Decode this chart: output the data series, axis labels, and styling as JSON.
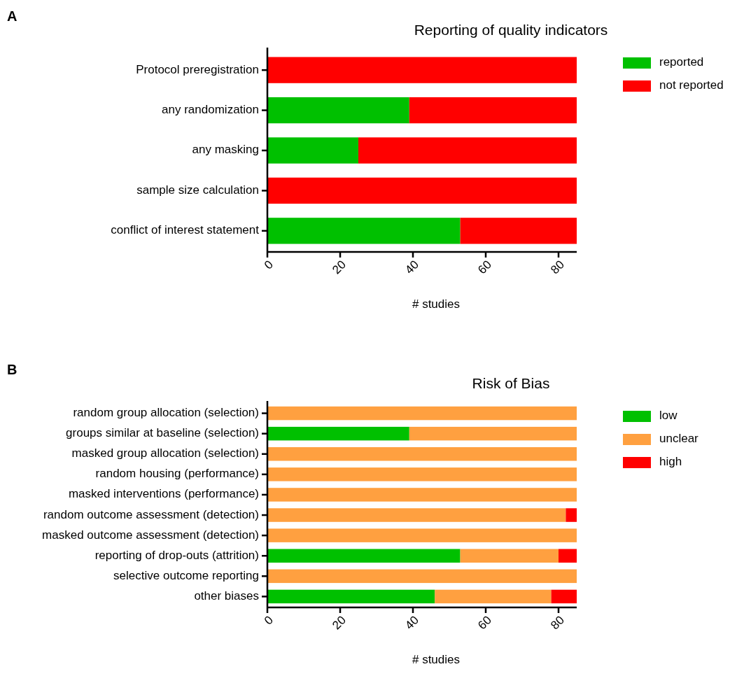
{
  "chart_data": [
    {
      "type": "bar",
      "orientation": "horizontal",
      "stacked": true,
      "title": "Reporting of quality indicators",
      "xlabel": "# studies",
      "annotations": [
        "A"
      ],
      "categories": [
        "Protocol preregistration",
        "any randomization",
        "any masking",
        "sample size calculation",
        "conflict of interest statement"
      ],
      "series": [
        {
          "name": "reported",
          "color": "#00c000",
          "values": [
            0,
            39,
            25,
            0,
            53
          ]
        },
        {
          "name": "not reported",
          "color": "#ff0000",
          "values": [
            85,
            46,
            60,
            85,
            32
          ]
        }
      ],
      "xlim": [
        0,
        85
      ],
      "xticks": [
        0,
        20,
        40,
        60,
        80
      ],
      "legend": "right",
      "grid": false
    },
    {
      "type": "bar",
      "orientation": "horizontal",
      "stacked": true,
      "title": "Risk of Bias",
      "xlabel": "# studies",
      "annotations": [
        "B"
      ],
      "categories": [
        "random group allocation (selection)",
        "groups similar at baseline (selection)",
        "masked group allocation (selection)",
        "random housing (performance)",
        "masked interventions (performance)",
        "random outcome assessment (detection)",
        "masked outcome assessment (detection)",
        "reporting of drop-outs (attrition)",
        "selective outcome reporting",
        "other biases"
      ],
      "series": [
        {
          "name": "low",
          "color": "#00c000",
          "values": [
            0,
            39,
            0,
            0,
            0,
            0,
            0,
            53,
            0,
            46
          ]
        },
        {
          "name": "unclear",
          "color": "#ffa040",
          "values": [
            85,
            46,
            85,
            85,
            85,
            82,
            85,
            27,
            85,
            32
          ]
        },
        {
          "name": "high",
          "color": "#ff0000",
          "values": [
            0,
            0,
            0,
            0,
            0,
            3,
            0,
            5,
            0,
            7
          ]
        }
      ],
      "xlim": [
        0,
        85
      ],
      "xticks": [
        0,
        20,
        40,
        60,
        80
      ],
      "legend": "right",
      "grid": false
    }
  ]
}
